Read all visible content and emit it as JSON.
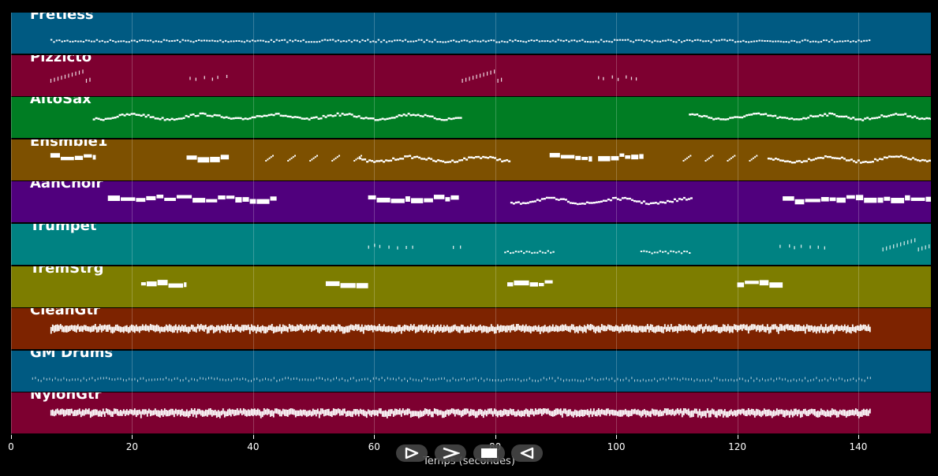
{
  "chart_data": {
    "type": "piano-roll",
    "xlabel": "Temps (secondes)",
    "xlim": [
      0,
      152
    ],
    "x_ticks": [
      0,
      20,
      40,
      60,
      80,
      100,
      120,
      140
    ],
    "tick_labels": [
      "0",
      "20",
      "40",
      "60",
      "80",
      "100",
      "120",
      "140"
    ],
    "grid": true,
    "tracks": [
      {
        "name": "Fretless",
        "color": "#005a82",
        "segments": [
          {
            "start": 6.5,
            "end": 142,
            "style": "dots"
          }
        ]
      },
      {
        "name": "Pizzicto",
        "color": "#7d0030",
        "segments": [
          {
            "start": 6.5,
            "end": 13.3,
            "style": "stairs"
          },
          {
            "start": 29.5,
            "end": 36,
            "style": "sparse"
          },
          {
            "start": 74.5,
            "end": 81,
            "style": "stairs"
          },
          {
            "start": 97,
            "end": 103.5,
            "style": "sparse"
          }
        ]
      },
      {
        "name": "AltoSax",
        "color": "#007d23",
        "segments": [
          {
            "start": 13.5,
            "end": 74.5,
            "style": "wave"
          },
          {
            "start": 112,
            "end": 152,
            "style": "wave"
          }
        ]
      },
      {
        "name": "Ensmble1",
        "color": "#7d5000",
        "segments": [
          {
            "start": 6.5,
            "end": 14,
            "style": "blocks"
          },
          {
            "start": 29,
            "end": 36,
            "style": "blocks"
          },
          {
            "start": 42,
            "end": 57,
            "style": "arps"
          },
          {
            "start": 57.5,
            "end": 82.5,
            "style": "wave"
          },
          {
            "start": 89,
            "end": 96,
            "style": "blocks"
          },
          {
            "start": 97,
            "end": 104.5,
            "style": "blocks"
          },
          {
            "start": 111,
            "end": 125,
            "style": "arps"
          },
          {
            "start": 125,
            "end": 152,
            "style": "wave"
          }
        ]
      },
      {
        "name": "AahChoir",
        "color": "#50007d",
        "segments": [
          {
            "start": 16,
            "end": 44,
            "style": "blocks"
          },
          {
            "start": 59,
            "end": 74,
            "style": "blocks"
          },
          {
            "start": 82.5,
            "end": 112.5,
            "style": "wave"
          },
          {
            "start": 127.5,
            "end": 152,
            "style": "blocks"
          }
        ]
      },
      {
        "name": "Trumpet",
        "color": "#008282",
        "segments": [
          {
            "start": 59,
            "end": 67,
            "style": "sparse"
          },
          {
            "start": 73,
            "end": 75,
            "style": "sparse"
          },
          {
            "start": 81.5,
            "end": 89.5,
            "style": "dots"
          },
          {
            "start": 104,
            "end": 112,
            "style": "dots"
          },
          {
            "start": 127,
            "end": 135,
            "style": "sparse"
          },
          {
            "start": 144,
            "end": 152,
            "style": "stairs"
          }
        ]
      },
      {
        "name": "TremStrg",
        "color": "#7d7d00",
        "segments": [
          {
            "start": 21.5,
            "end": 29,
            "style": "blocks"
          },
          {
            "start": 52,
            "end": 59,
            "style": "blocks"
          },
          {
            "start": 82,
            "end": 89.5,
            "style": "blocks"
          },
          {
            "start": 120,
            "end": 127.5,
            "style": "blocks"
          }
        ]
      },
      {
        "name": "CleanGtr",
        "color": "#7d2300",
        "segments": [
          {
            "start": 6.5,
            "end": 142,
            "style": "dense"
          }
        ]
      },
      {
        "name": "GM Drums",
        "color": "#005a82",
        "segments": [
          {
            "start": 3.5,
            "end": 142,
            "style": "ticks"
          }
        ]
      },
      {
        "name": "NylonGtr",
        "color": "#7d0030",
        "segments": [
          {
            "start": 6.5,
            "end": 142,
            "style": "dense"
          }
        ]
      }
    ]
  },
  "controls": [
    {
      "name": "play-forward-button",
      "icon": "play-outline-icon"
    },
    {
      "name": "fast-forward-button",
      "icon": "chevron-right-icon"
    },
    {
      "name": "stop-button",
      "icon": "stop-icon"
    },
    {
      "name": "rewind-button",
      "icon": "play-back-outline-icon"
    }
  ]
}
